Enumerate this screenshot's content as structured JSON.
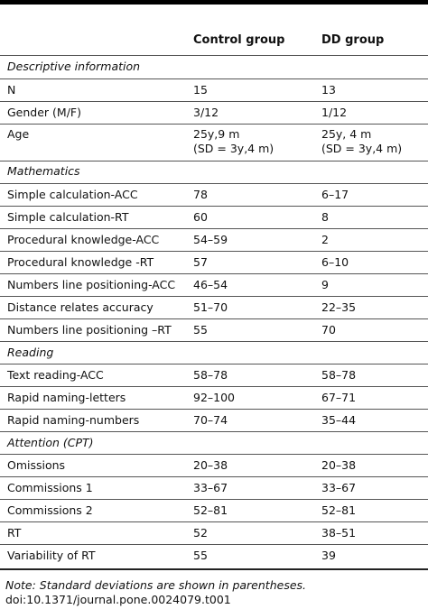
{
  "headers": {
    "col1": "",
    "col2": "Control group",
    "col3": "DD group"
  },
  "rows": [
    {
      "type": "section",
      "label": "Descriptive information"
    },
    {
      "type": "data",
      "label": "N",
      "control": "15",
      "dd": "13"
    },
    {
      "type": "data",
      "label": "Gender (M/F)",
      "control": "3/12",
      "dd": "1/12"
    },
    {
      "type": "data2",
      "label": "Age",
      "control": "25y,9 m",
      "control2": "(SD = 3y,4 m)",
      "dd": "25y, 4 m",
      "dd2": "(SD = 3y,4 m)"
    },
    {
      "type": "section",
      "label": "Mathematics"
    },
    {
      "type": "data",
      "label": "Simple calculation-ACC",
      "control": "78",
      "dd": "6–17"
    },
    {
      "type": "data",
      "label": "Simple calculation-RT",
      "control": "60",
      "dd": "8"
    },
    {
      "type": "data",
      "label": "Procedural knowledge-ACC",
      "control": "54–59",
      "dd": "2"
    },
    {
      "type": "data",
      "label": "Procedural knowledge -RT",
      "control": "57",
      "dd": "6–10"
    },
    {
      "type": "data",
      "label": "Numbers line positioning-ACC",
      "control": "46–54",
      "dd": "9"
    },
    {
      "type": "data",
      "label": "Distance relates accuracy",
      "control": "51–70",
      "dd": "22–35"
    },
    {
      "type": "data",
      "label": "Numbers line positioning –RT",
      "control": "55",
      "dd": "70"
    },
    {
      "type": "section",
      "label": "Reading"
    },
    {
      "type": "data",
      "label": "Text reading-ACC",
      "control": "58–78",
      "dd": "58–78"
    },
    {
      "type": "data",
      "label": "Rapid naming-letters",
      "control": "92–100",
      "dd": "67–71"
    },
    {
      "type": "data",
      "label": "Rapid naming-numbers",
      "control": "70–74",
      "dd": "35–44"
    },
    {
      "type": "section",
      "label": "Attention (CPT)"
    },
    {
      "type": "data",
      "label": "Omissions",
      "control": "20–38",
      "dd": "20–38"
    },
    {
      "type": "data",
      "label": "Commissions 1",
      "control": "33–67",
      "dd": "33–67"
    },
    {
      "type": "data",
      "label": "Commissions 2",
      "control": "52–81",
      "dd": "52–81"
    },
    {
      "type": "data",
      "label": "RT",
      "control": "52",
      "dd": "38–51"
    },
    {
      "type": "data",
      "label": "Variability of RT",
      "control": "55",
      "dd": "39"
    }
  ],
  "note": "Note: Standard deviations are shown in parentheses.",
  "doi": "doi:10.1371/journal.pone.0024079.t001"
}
